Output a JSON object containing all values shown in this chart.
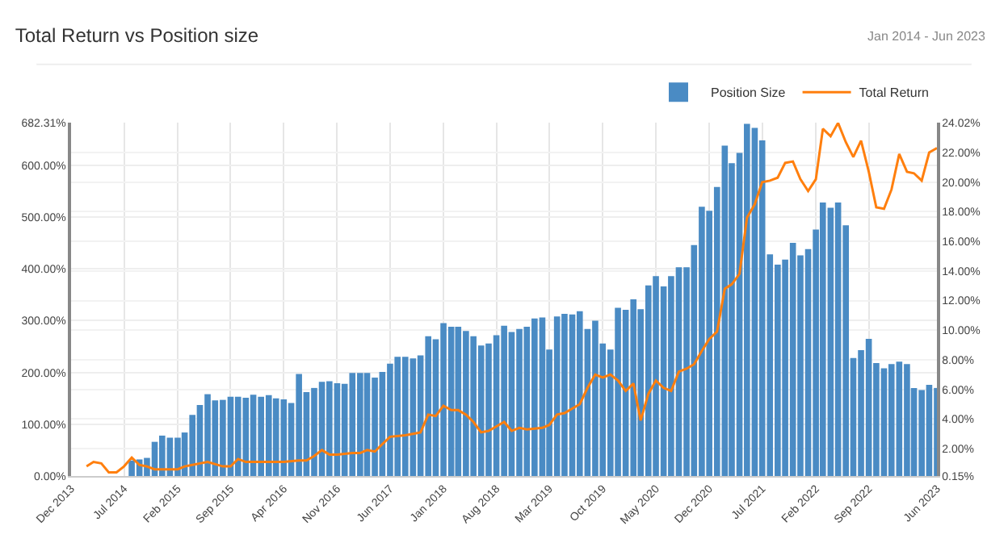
{
  "chart_data": {
    "type": "bar",
    "title": "Total Return vs Position size",
    "subtitle": "Jan 2014 - Jun 2023",
    "x": [
      "2014-08",
      "2014-09",
      "2014-10",
      "2014-11",
      "2014-12",
      "2015-01",
      "2015-02",
      "2015-03",
      "2015-04",
      "2015-05",
      "2015-06",
      "2015-07",
      "2015-08",
      "2015-09",
      "2015-10",
      "2015-11",
      "2015-12",
      "2016-01",
      "2016-02",
      "2016-03",
      "2016-04",
      "2016-05",
      "2016-06",
      "2016-07",
      "2016-08",
      "2016-09",
      "2016-10",
      "2016-11",
      "2016-12",
      "2017-01",
      "2017-02",
      "2017-03",
      "2017-04",
      "2017-05",
      "2017-06",
      "2017-07",
      "2017-08",
      "2017-09",
      "2017-10",
      "2017-11",
      "2017-12",
      "2018-01",
      "2018-02",
      "2018-03",
      "2018-04",
      "2018-05",
      "2018-06",
      "2018-07",
      "2018-08",
      "2018-09",
      "2018-10",
      "2018-11",
      "2018-12",
      "2019-01",
      "2019-02",
      "2019-03",
      "2019-04",
      "2019-05",
      "2019-06",
      "2019-07",
      "2019-08",
      "2019-09",
      "2019-10",
      "2019-11",
      "2019-12",
      "2020-01",
      "2020-02",
      "2020-03",
      "2020-04",
      "2020-05",
      "2020-06",
      "2020-07",
      "2020-08",
      "2020-09",
      "2020-10",
      "2020-11",
      "2020-12",
      "2021-01",
      "2021-02",
      "2021-03",
      "2021-04",
      "2021-05",
      "2021-06",
      "2021-07",
      "2021-08",
      "2021-09",
      "2021-10",
      "2021-11",
      "2021-12",
      "2022-01",
      "2022-02",
      "2022-03",
      "2022-04",
      "2022-05",
      "2022-06",
      "2022-07",
      "2022-08",
      "2022-09",
      "2022-10",
      "2022-11",
      "2022-12",
      "2023-01",
      "2023-02",
      "2023-03",
      "2023-04",
      "2023-05",
      "2023-06"
    ],
    "series": [
      {
        "name": "Position Size",
        "color": "#4a8bc4",
        "values": [
          30,
          32,
          35,
          66,
          78,
          74,
          74,
          84,
          118,
          137,
          158,
          146,
          147,
          153,
          153,
          151,
          157,
          153,
          156,
          150,
          148,
          141,
          197,
          162,
          170,
          182,
          183,
          179,
          178,
          199,
          199,
          199,
          190,
          201,
          217,
          230,
          230,
          227,
          233,
          270,
          264,
          295,
          288,
          288,
          280,
          270,
          252,
          256,
          272,
          290,
          278,
          284,
          288,
          304,
          306,
          244,
          308,
          313,
          312,
          318,
          284,
          300,
          256,
          244,
          325,
          321,
          341,
          322,
          368,
          386,
          366,
          386,
          403,
          403,
          446,
          520,
          512,
          558,
          638,
          604,
          624,
          680,
          672,
          648,
          428,
          408,
          418,
          450,
          426,
          438,
          476,
          528,
          518,
          528,
          484,
          228,
          243,
          265,
          218,
          208,
          216,
          221,
          216,
          170,
          166,
          176,
          170
        ]
      },
      {
        "name": "Total Return",
        "type": "line",
        "axis": "y2",
        "color": "#ff7f0e",
        "x": [
          "2014-02",
          "2014-03",
          "2014-04",
          "2014-05",
          "2014-06",
          "2014-07",
          "2014-08",
          "2014-09",
          "2014-10",
          "2014-11",
          "2014-12",
          "2015-01",
          "2015-02",
          "2015-03",
          "2015-04",
          "2015-05",
          "2015-06",
          "2015-08",
          "2015-09",
          "2015-10",
          "2015-11",
          "2015-12",
          "2016-02",
          "2016-03",
          "2016-04",
          "2016-06",
          "2016-07",
          "2016-08",
          "2016-09",
          "2016-10",
          "2016-11",
          "2017-01",
          "2017-02",
          "2017-03",
          "2017-04",
          "2017-05",
          "2017-06",
          "2017-08",
          "2017-09",
          "2017-10",
          "2017-11",
          "2017-12",
          "2018-01",
          "2018-02",
          "2018-03",
          "2018-04",
          "2018-05",
          "2018-06",
          "2018-07",
          "2018-08",
          "2018-09",
          "2018-10",
          "2018-11",
          "2018-12",
          "2019-02",
          "2019-03",
          "2019-04",
          "2019-05",
          "2019-07",
          "2019-08",
          "2019-09",
          "2019-10",
          "2019-11",
          "2019-12",
          "2020-01",
          "2020-02",
          "2020-03",
          "2020-04",
          "2020-05",
          "2020-06",
          "2020-07",
          "2020-08",
          "2020-09",
          "2020-10",
          "2020-11",
          "2020-12",
          "2021-01",
          "2021-02",
          "2021-03",
          "2021-04",
          "2021-05",
          "2021-06",
          "2021-07",
          "2021-08",
          "2021-09",
          "2021-10",
          "2021-11",
          "2021-12",
          "2022-01",
          "2022-02",
          "2022-03",
          "2022-04",
          "2022-05",
          "2022-06",
          "2022-07",
          "2022-08",
          "2022-09",
          "2022-10",
          "2022-11",
          "2022-12",
          "2023-01",
          "2023-02",
          "2023-03",
          "2023-04",
          "2023-05",
          "2023-06"
        ],
        "values": [
          0.8,
          1.1,
          1.0,
          0.4,
          0.4,
          0.8,
          1.4,
          0.9,
          0.8,
          0.6,
          0.6,
          0.6,
          0.6,
          0.8,
          0.9,
          1.0,
          1.1,
          0.8,
          0.8,
          1.3,
          1.1,
          1.1,
          1.1,
          1.1,
          1.1,
          1.2,
          1.2,
          1.5,
          1.9,
          1.6,
          1.6,
          1.7,
          1.7,
          1.9,
          1.8,
          2.3,
          2.8,
          2.9,
          3.0,
          3.1,
          4.3,
          4.2,
          4.9,
          4.6,
          4.6,
          4.3,
          3.8,
          3.1,
          3.2,
          3.5,
          3.8,
          3.2,
          3.4,
          3.3,
          3.4,
          3.6,
          4.3,
          4.4,
          5.0,
          6.1,
          7.0,
          6.8,
          7.0,
          6.6,
          5.9,
          6.4,
          3.9,
          5.7,
          6.6,
          6.1,
          5.9,
          7.2,
          7.4,
          7.7,
          8.6,
          9.4,
          9.9,
          12.8,
          13.1,
          13.8,
          17.6,
          18.5,
          20.0,
          20.1,
          20.3,
          21.3,
          21.4,
          20.2,
          19.4,
          20.2,
          23.6,
          23.1,
          24.0,
          22.7,
          21.7,
          22.8,
          20.7,
          18.3,
          18.2,
          19.5,
          21.9,
          20.7,
          20.6,
          20.1,
          22.0,
          22.3
        ]
      }
    ],
    "xlim": [
      "2013-12",
      "2023-06"
    ],
    "xticks": [
      {
        "value": "2013-12",
        "label": "Dec 2013"
      },
      {
        "value": "2014-07",
        "label": "Jul 2014"
      },
      {
        "value": "2015-02",
        "label": "Feb 2015"
      },
      {
        "value": "2015-09",
        "label": "Sep 2015"
      },
      {
        "value": "2016-04",
        "label": "Apr 2016"
      },
      {
        "value": "2016-11",
        "label": "Nov 2016"
      },
      {
        "value": "2017-06",
        "label": "Jun 2017"
      },
      {
        "value": "2018-01",
        "label": "Jan 2018"
      },
      {
        "value": "2018-08",
        "label": "Aug 2018"
      },
      {
        "value": "2019-03",
        "label": "Mar 2019"
      },
      {
        "value": "2019-10",
        "label": "Oct 2019"
      },
      {
        "value": "2020-05",
        "label": "May 2020"
      },
      {
        "value": "2020-12",
        "label": "Dec 2020"
      },
      {
        "value": "2021-07",
        "label": "Jul 2021"
      },
      {
        "value": "2022-02",
        "label": "Feb 2022"
      },
      {
        "value": "2022-09",
        "label": "Sep 2022"
      },
      {
        "value": "2023-06",
        "label": "Jun 2023"
      }
    ],
    "ylim": [
      0,
      682.31
    ],
    "yticks": [
      {
        "value": 0,
        "label": "0.00%"
      },
      {
        "value": 100,
        "label": "100.00%"
      },
      {
        "value": 200,
        "label": "200.00%"
      },
      {
        "value": 300,
        "label": "300.00%"
      },
      {
        "value": 400,
        "label": "400.00%"
      },
      {
        "value": 500,
        "label": "500.00%"
      },
      {
        "value": 600,
        "label": "600.00%"
      },
      {
        "value": 682.31,
        "label": "682.31%"
      }
    ],
    "y2lim": [
      0.15,
      24.02
    ],
    "y2ticks": [
      {
        "value": 0.15,
        "label": "0.15%"
      },
      {
        "value": 2,
        "label": "2.00%"
      },
      {
        "value": 4,
        "label": "4.00%"
      },
      {
        "value": 6,
        "label": "6.00%"
      },
      {
        "value": 8,
        "label": "8.00%"
      },
      {
        "value": 10,
        "label": "10.00%"
      },
      {
        "value": 12,
        "label": "12.00%"
      },
      {
        "value": 14,
        "label": "14.00%"
      },
      {
        "value": 16,
        "label": "16.00%"
      },
      {
        "value": 18,
        "label": "18.00%"
      },
      {
        "value": 20,
        "label": "20.00%"
      },
      {
        "value": 22,
        "label": "22.00%"
      },
      {
        "value": 24.02,
        "label": "24.02%"
      }
    ],
    "grid": true,
    "legend": "top right",
    "marker": "none",
    "line_style": "solid"
  }
}
